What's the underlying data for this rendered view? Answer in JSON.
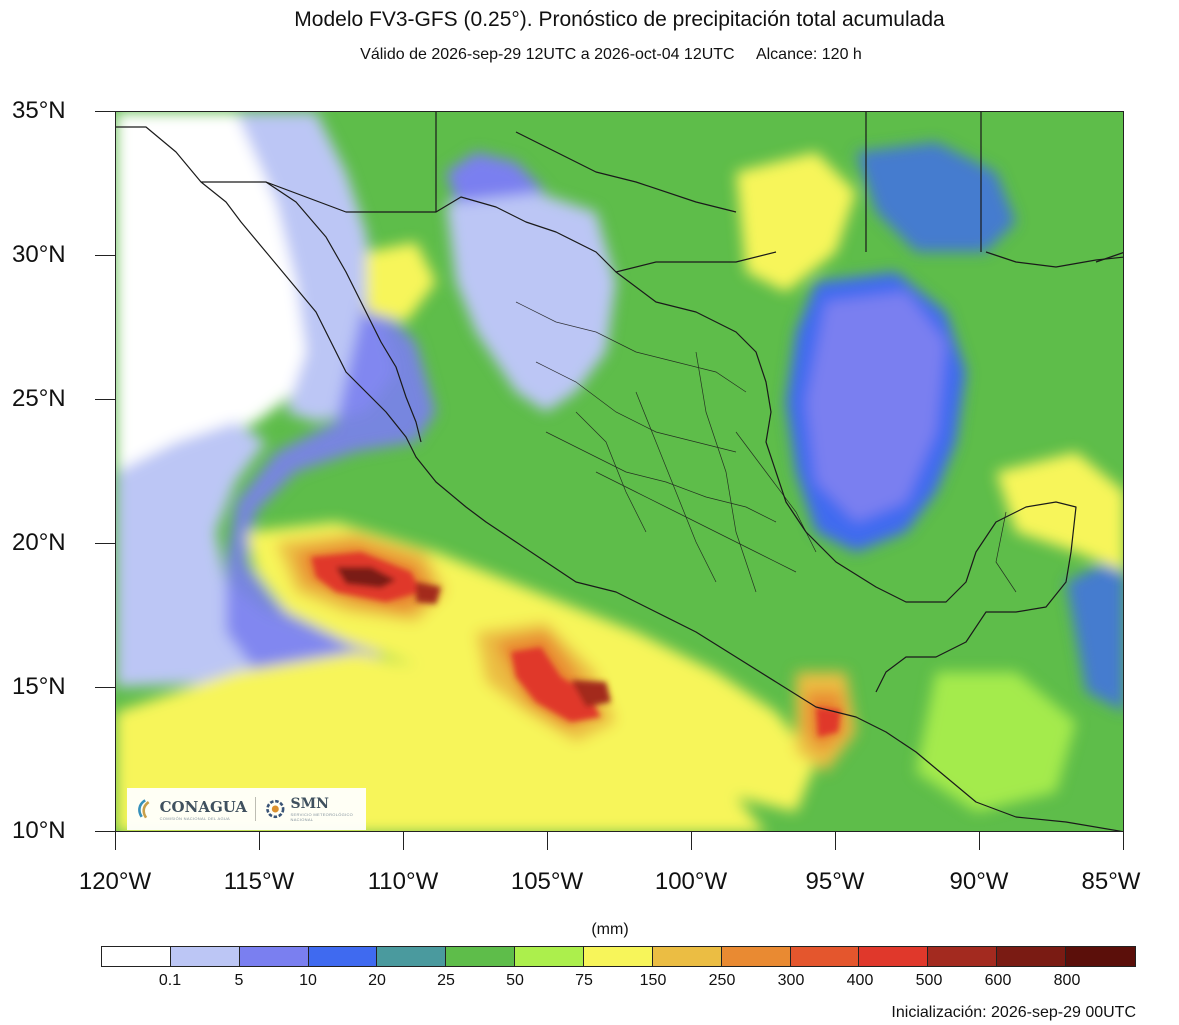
{
  "title": "Modelo FV3-GFS (0.25°). Pronóstico de precipitación total acumulada",
  "subtitle": {
    "validity": "Válido de 2026-sep-29 12UTC a 2026-oct-04 12UTC",
    "range": "Alcance: 120 h"
  },
  "map": {
    "latitude_labels": [
      "35°N",
      "30°N",
      "25°N",
      "20°N",
      "15°N",
      "10°N"
    ],
    "longitude_labels": [
      "120°W",
      "115°W",
      "110°W",
      "105°W",
      "100°W",
      "95°W",
      "90°W",
      "85°W"
    ],
    "extent": {
      "lon": [
        -120,
        -85
      ],
      "lat": [
        10,
        35
      ]
    }
  },
  "colorbar": {
    "units": "(mm)",
    "colors": [
      "#ffffff",
      "#bcc6f5",
      "#7a7ff0",
      "#3f6af0",
      "#4a9a9e",
      "#5ebd4a",
      "#acef4c",
      "#f7f55a",
      "#ebbd43",
      "#e98a32",
      "#e4562d",
      "#e0382b",
      "#a32a1f",
      "#7a1b13",
      "#5b0f0a"
    ],
    "labels": [
      "0.1",
      "5",
      "10",
      "20",
      "25",
      "50",
      "75",
      "150",
      "250",
      "300",
      "400",
      "500",
      "600",
      "800"
    ]
  },
  "logos": {
    "conagua": "CONAGUA",
    "conagua_sub": "COMISIÓN NACIONAL DEL AGUA",
    "smn": "SMN",
    "smn_sub": "SERVICIO METEOROLÓGICO NACIONAL"
  },
  "footer": "Inicialización: 2026-sep-29 00UTC"
}
